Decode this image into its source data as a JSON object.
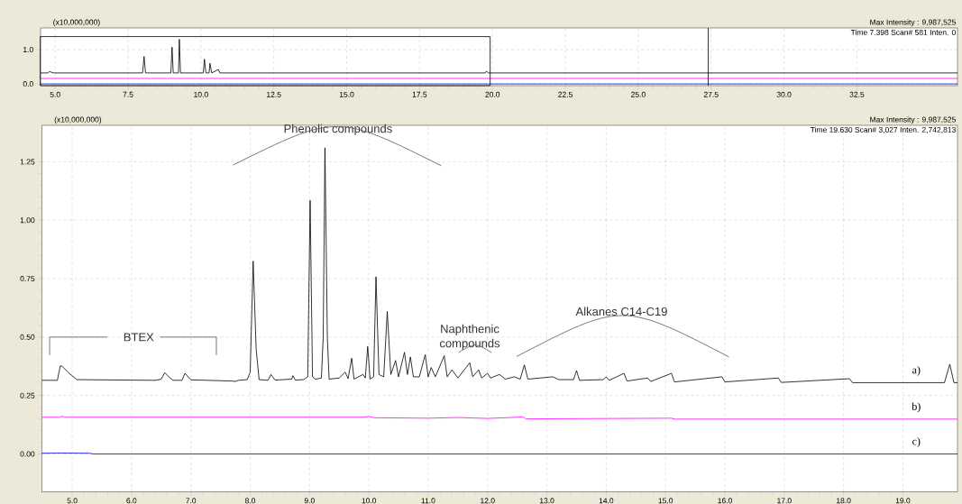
{
  "chart_data": [
    {
      "type": "line",
      "xlim": [
        4.5,
        35.95
      ],
      "ylim": [
        -0.05,
        1.63
      ],
      "xticks": [
        {
          "value": 5,
          "label": "5.0"
        },
        {
          "value": 7.5,
          "label": "7.5"
        },
        {
          "value": 10,
          "label": "10.0"
        },
        {
          "value": 12.5,
          "label": "12.5"
        },
        {
          "value": 15,
          "label": "15.0"
        },
        {
          "value": 17.5,
          "label": "17.5"
        },
        {
          "value": 20,
          "label": "20.0"
        },
        {
          "value": 22.5,
          "label": "22.5"
        },
        {
          "value": 25,
          "label": "25.0"
        },
        {
          "value": 27.5,
          "label": "27.5"
        },
        {
          "value": 30,
          "label": "30.0"
        },
        {
          "value": 32.5,
          "label": "32.5"
        }
      ],
      "yticks": [
        {
          "value": 0,
          "label": "0.0"
        },
        {
          "value": 1,
          "label": "1.0"
        }
      ],
      "grid": true,
      "annotations": [
        "(x10,000,000)",
        "Max Intensity : 9,987,525",
        "Time 7.398 Scan# 581 Inten. 0"
      ],
      "ref_lines": [
        {
          "axis": "x",
          "value": 27.4,
          "color": "#000000"
        }
      ],
      "series": [
        {
          "color": "#000000",
          "x": [
            4.5,
            4.75,
            4.8,
            4.95,
            8.0,
            8.05,
            8.1,
            8.97,
            9.01,
            9.05,
            9.23,
            9.26,
            9.3,
            10.08,
            10.12,
            10.17,
            10.28,
            10.31,
            10.37,
            10.6,
            10.65,
            19.75,
            19.79,
            19.86,
            35.95
          ],
          "values": [
            0.32,
            0.32,
            0.36,
            0.32,
            0.32,
            0.8,
            0.32,
            0.32,
            1.07,
            0.32,
            0.32,
            1.3,
            0.32,
            0.32,
            0.72,
            0.32,
            0.32,
            0.6,
            0.32,
            0.42,
            0.32,
            0.32,
            0.37,
            0.32,
            0.32
          ]
        },
        {
          "color": "#ff00ff",
          "x": [
            4.5,
            35.95
          ],
          "values": [
            0.16,
            0.16
          ]
        },
        {
          "color": "#0000ff",
          "x": [
            4.5,
            35.95
          ],
          "values": [
            0.0,
            0.0
          ]
        }
      ]
    },
    {
      "type": "line",
      "xlim": [
        4.49,
        19.92
      ],
      "ylim": [
        -0.162,
        1.406
      ],
      "xticks": [
        {
          "value": 5,
          "label": "5.0"
        },
        {
          "value": 6,
          "label": "6.0"
        },
        {
          "value": 7,
          "label": "7.0"
        },
        {
          "value": 8,
          "label": "8.0"
        },
        {
          "value": 9,
          "label": "9.0"
        },
        {
          "value": 10,
          "label": "10.0"
        },
        {
          "value": 11,
          "label": "11.0"
        },
        {
          "value": 12,
          "label": "12.0"
        },
        {
          "value": 13,
          "label": "13.0"
        },
        {
          "value": 14,
          "label": "14.0"
        },
        {
          "value": 15,
          "label": "15.0"
        },
        {
          "value": 16,
          "label": "16.0"
        },
        {
          "value": 17,
          "label": "17.0"
        },
        {
          "value": 18,
          "label": "18.0"
        },
        {
          "value": 19,
          "label": "19.0"
        }
      ],
      "yticks": [
        {
          "value": 0,
          "label": "0.00"
        },
        {
          "value": 0.25,
          "label": "0.25"
        },
        {
          "value": 0.5,
          "label": "0.50"
        },
        {
          "value": 0.75,
          "label": "0.75"
        },
        {
          "value": 1,
          "label": "1.00"
        },
        {
          "value": 1.25,
          "label": "1.25"
        }
      ],
      "grid": true,
      "annotations": [
        "(x10,000,000)",
        "Max Intensity : 9,987,525",
        "Time 19.630 Scan# 3,027 Inten. 2,742,813",
        "Phenolic compounds",
        "Naphthenic compounds",
        "Alkanes C14-C19",
        "BTEX"
      ],
      "series": [
        {
          "name": "a)",
          "color": "#000000",
          "x": [
            4.49,
            4.75,
            4.8,
            4.83,
            4.95,
            5.08,
            6.4,
            6.5,
            6.56,
            6.65,
            6.7,
            6.85,
            6.9,
            7.0,
            7.7,
            7.75,
            7.8,
            7.95,
            8.0,
            8.05,
            8.1,
            8.15,
            8.3,
            8.35,
            8.42,
            8.7,
            8.72,
            8.76,
            8.9,
            8.97,
            9.01,
            9.05,
            9.1,
            9.2,
            9.23,
            9.26,
            9.3,
            9.33,
            9.5,
            9.6,
            9.65,
            9.71,
            9.75,
            9.9,
            9.94,
            9.98,
            10.02,
            10.08,
            10.12,
            10.17,
            10.25,
            10.31,
            10.37,
            10.45,
            10.5,
            10.6,
            10.65,
            10.7,
            10.75,
            10.85,
            10.95,
            11.0,
            11.05,
            11.12,
            11.27,
            11.32,
            11.4,
            11.5,
            11.7,
            11.75,
            11.85,
            11.9,
            12.0,
            12.05,
            12.2,
            12.3,
            12.45,
            12.55,
            12.62,
            12.68,
            13.1,
            13.2,
            13.45,
            13.5,
            13.55,
            13.95,
            14.0,
            14.05,
            14.3,
            14.35,
            14.7,
            14.75,
            15.1,
            15.15,
            15.95,
            16.0,
            16.9,
            16.95,
            18.1,
            18.15,
            19.7,
            19.79,
            19.86,
            19.92
          ],
          "values": [
            0.315,
            0.315,
            0.377,
            0.375,
            0.345,
            0.318,
            0.315,
            0.32,
            0.348,
            0.325,
            0.315,
            0.315,
            0.345,
            0.317,
            0.312,
            0.31,
            0.315,
            0.318,
            0.35,
            0.825,
            0.45,
            0.318,
            0.315,
            0.34,
            0.316,
            0.32,
            0.335,
            0.316,
            0.318,
            0.33,
            1.085,
            0.33,
            0.32,
            0.325,
            0.5,
            1.31,
            0.5,
            0.32,
            0.325,
            0.35,
            0.322,
            0.41,
            0.32,
            0.34,
            0.325,
            0.46,
            0.32,
            0.33,
            0.758,
            0.34,
            0.33,
            0.61,
            0.34,
            0.4,
            0.33,
            0.435,
            0.34,
            0.415,
            0.33,
            0.33,
            0.425,
            0.33,
            0.37,
            0.33,
            0.42,
            0.33,
            0.36,
            0.325,
            0.39,
            0.33,
            0.36,
            0.325,
            0.345,
            0.325,
            0.34,
            0.32,
            0.33,
            0.32,
            0.381,
            0.32,
            0.33,
            0.318,
            0.318,
            0.357,
            0.315,
            0.318,
            0.33,
            0.315,
            0.345,
            0.312,
            0.325,
            0.31,
            0.345,
            0.308,
            0.33,
            0.308,
            0.325,
            0.306,
            0.322,
            0.305,
            0.305,
            0.384,
            0.305,
            0.305
          ]
        },
        {
          "name": "b)",
          "color": "#ff00ff",
          "x": [
            4.49,
            4.8,
            4.83,
            4.87,
            9.9,
            10.0,
            10.1,
            11.0,
            11.5,
            12.0,
            12.6,
            12.65,
            15.1,
            15.15,
            19.92
          ],
          "values": [
            0.157,
            0.157,
            0.162,
            0.157,
            0.157,
            0.16,
            0.155,
            0.153,
            0.156,
            0.152,
            0.158,
            0.15,
            0.153,
            0.149,
            0.149
          ]
        },
        {
          "name": "c)",
          "color": "#0000ff",
          "x": [
            4.49,
            4.8,
            5.3,
            5.35,
            19.92
          ],
          "values": [
            0.003,
            0.004,
            0.003,
            0.0,
            0.0
          ]
        }
      ]
    }
  ]
}
